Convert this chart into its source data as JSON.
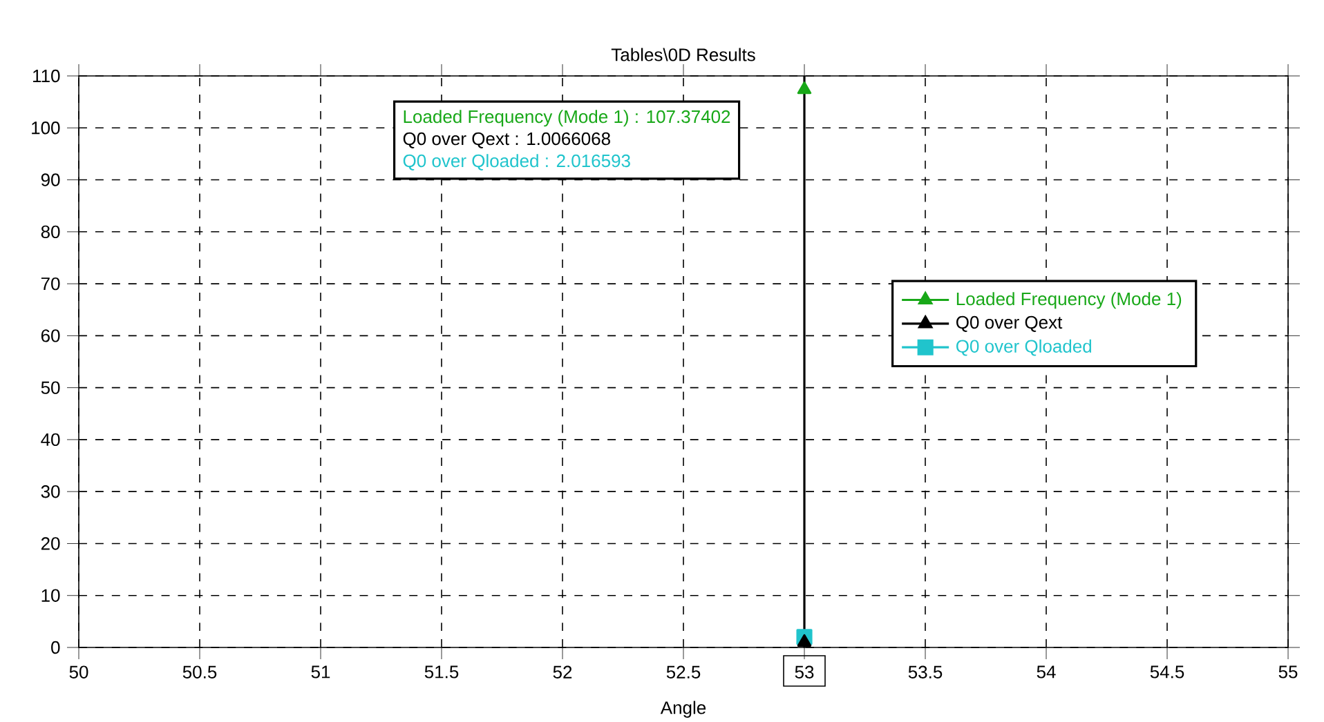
{
  "chart_data": {
    "type": "scatter",
    "title": "Tables\\0D Results",
    "xlabel": "Angle",
    "xlim": [
      50,
      55
    ],
    "xticks": [
      50,
      50.5,
      51,
      51.5,
      52,
      52.5,
      53,
      53.5,
      54,
      54.5,
      55
    ],
    "ylim": [
      0,
      110
    ],
    "yticks": [
      0,
      10,
      20,
      30,
      40,
      50,
      60,
      70,
      80,
      90,
      100,
      110
    ],
    "grid": true,
    "legend": "right",
    "x": [
      53
    ],
    "series": [
      {
        "name": "Loaded Frequency (Mode 1)",
        "color": "#18a818",
        "values": [
          107.37402
        ],
        "marker": "triangle"
      },
      {
        "name": "Q0 over Qext",
        "color": "#000000",
        "values": [
          1.0066068
        ],
        "marker": "triangle"
      },
      {
        "name": "Q0 over Qloaded",
        "color": "#20c4cc",
        "values": [
          2.016593
        ],
        "marker": "square"
      }
    ],
    "ref_lines": [
      {
        "axis": "x",
        "value": 53,
        "color": "#000000"
      }
    ],
    "annotations": [
      "Loaded Frequency (Mode 1) : 107.37402",
      "Q0 over Qext : 1.0066068",
      "Q0 over Qloaded : 2.016593"
    ]
  }
}
